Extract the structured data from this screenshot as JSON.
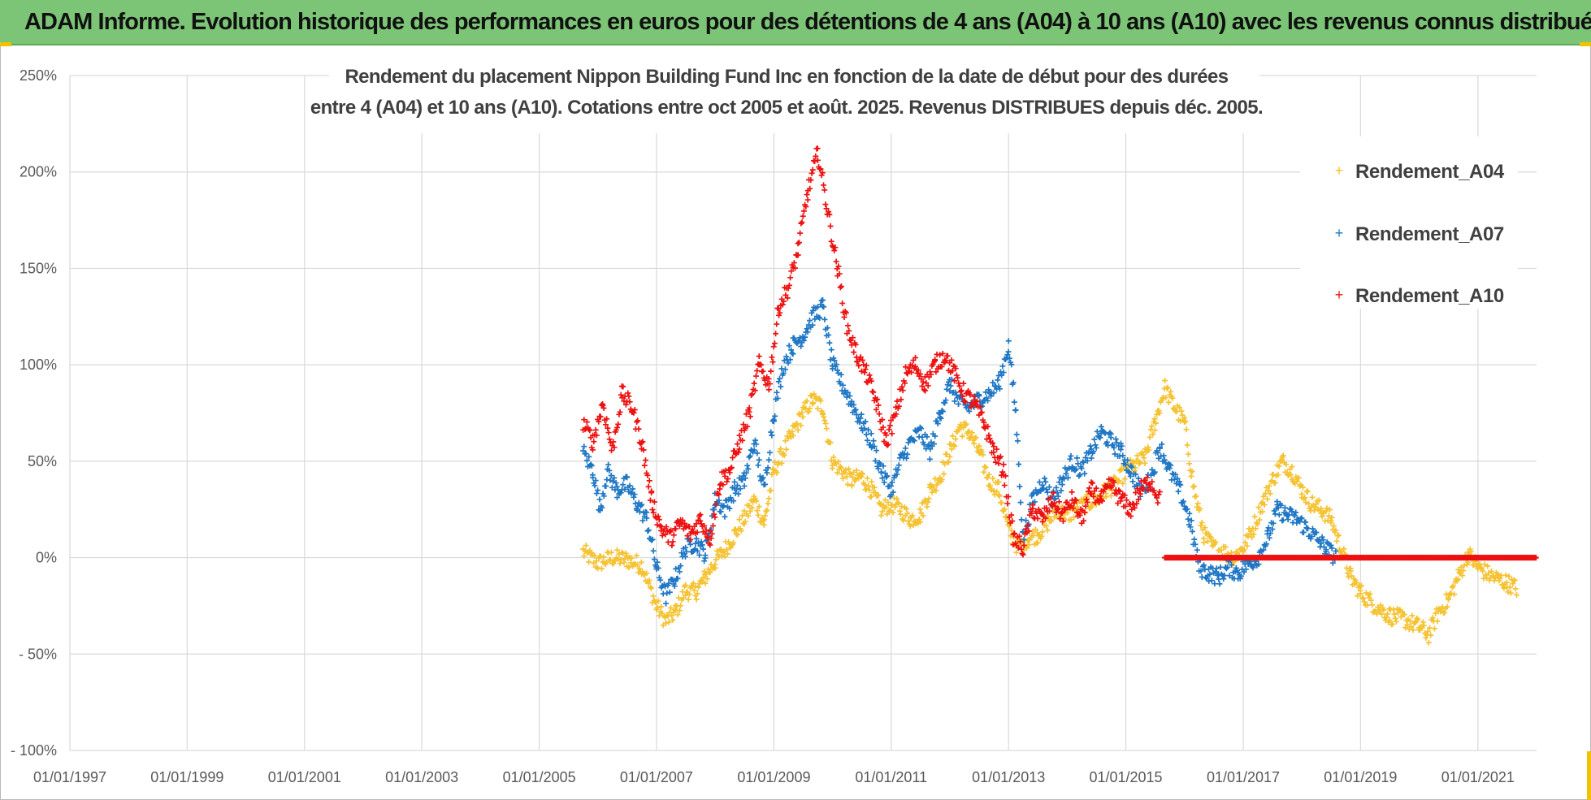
{
  "banner": {
    "title": "ADAM Informe. Evolution historique des performances en euros pour des détentions de 4 ans (A04) à 10 ans (A10) avec les revenus connus distribués"
  },
  "colors": {
    "banner_bg": "#7cc576",
    "A04": "#f5c231",
    "A07": "#1f77c4",
    "A10": "#ee1111",
    "grid": "#d9d9d9"
  },
  "chart_data": {
    "type": "scatter",
    "title_lines": [
      "Rendement du placement Nippon Building Fund Inc en fonction de la date de début pour des durées",
      "entre 4 (A04) et 10 ans (A10). Cotations entre oct 2005 et août. 2025. Revenus DISTRIBUES depuis déc. 2005."
    ],
    "x_axis": {
      "type": "date",
      "min": "1997-01-01",
      "max": "2022-01-01",
      "tick_labels": [
        "01/01/1997",
        "01/01/1999",
        "01/01/2001",
        "01/01/2003",
        "01/01/2005",
        "01/01/2007",
        "01/01/2009",
        "01/01/2011",
        "01/01/2013",
        "01/01/2015",
        "01/01/2017",
        "01/01/2019",
        "01/01/2021"
      ]
    },
    "y_axis": {
      "unit": "%",
      "min": -100,
      "max": 250,
      "tick_values": [
        250,
        200,
        150,
        100,
        50,
        0,
        -50,
        -100
      ],
      "tick_labels": [
        "250%",
        "200%",
        "150%",
        "100%",
        "50%",
        "0%",
        "- 50%",
        "- 100%"
      ]
    },
    "grid": true,
    "legend": {
      "position": "top-right",
      "marker": "+"
    },
    "series": [
      {
        "name": "Rendement_A04",
        "color": "#f5c231",
        "points": [
          [
            "2005-10-01",
            3
          ],
          [
            "2006-01-01",
            -3
          ],
          [
            "2006-04-01",
            0
          ],
          [
            "2006-07-01",
            -1
          ],
          [
            "2006-10-01",
            -4
          ],
          [
            "2007-01-01",
            -25
          ],
          [
            "2007-03-01",
            -33
          ],
          [
            "2007-05-01",
            -28
          ],
          [
            "2007-07-01",
            -17
          ],
          [
            "2007-09-01",
            -18
          ],
          [
            "2007-11-01",
            -10
          ],
          [
            "2008-01-01",
            -2
          ],
          [
            "2008-03-01",
            4
          ],
          [
            "2008-05-01",
            12
          ],
          [
            "2008-07-01",
            20
          ],
          [
            "2008-09-01",
            30
          ],
          [
            "2008-11-01",
            18
          ],
          [
            "2009-01-01",
            45
          ],
          [
            "2009-03-01",
            55
          ],
          [
            "2009-05-01",
            65
          ],
          [
            "2009-07-01",
            75
          ],
          [
            "2009-09-01",
            82
          ],
          [
            "2009-11-01",
            78
          ],
          [
            "2010-01-01",
            50
          ],
          [
            "2010-03-01",
            45
          ],
          [
            "2010-05-01",
            40
          ],
          [
            "2010-07-01",
            42
          ],
          [
            "2010-09-01",
            35
          ],
          [
            "2010-11-01",
            25
          ],
          [
            "2011-01-01",
            28
          ],
          [
            "2011-03-01",
            25
          ],
          [
            "2011-05-01",
            20
          ],
          [
            "2011-07-01",
            22
          ],
          [
            "2011-09-01",
            35
          ],
          [
            "2011-11-01",
            42
          ],
          [
            "2012-01-01",
            55
          ],
          [
            "2012-03-01",
            68
          ],
          [
            "2012-05-01",
            65
          ],
          [
            "2012-07-01",
            55
          ],
          [
            "2012-09-01",
            40
          ],
          [
            "2012-11-01",
            35
          ],
          [
            "2013-01-01",
            15
          ],
          [
            "2013-03-01",
            5
          ],
          [
            "2013-05-01",
            10
          ],
          [
            "2013-07-01",
            12
          ],
          [
            "2013-09-01",
            18
          ],
          [
            "2013-11-01",
            25
          ],
          [
            "2014-01-01",
            22
          ],
          [
            "2014-03-01",
            25
          ],
          [
            "2014-05-01",
            28
          ],
          [
            "2014-07-01",
            30
          ],
          [
            "2014-09-01",
            35
          ],
          [
            "2014-11-01",
            38
          ],
          [
            "2015-01-01",
            45
          ],
          [
            "2015-03-01",
            48
          ],
          [
            "2015-05-01",
            52
          ],
          [
            "2015-07-01",
            70
          ],
          [
            "2015-09-01",
            88
          ],
          [
            "2015-11-01",
            78
          ],
          [
            "2016-01-01",
            70
          ],
          [
            "2016-03-01",
            35
          ],
          [
            "2016-05-01",
            12
          ],
          [
            "2016-07-01",
            5
          ],
          [
            "2016-09-01",
            3
          ],
          [
            "2016-11-01",
            0
          ],
          [
            "2017-01-01",
            5
          ],
          [
            "2017-03-01",
            15
          ],
          [
            "2017-05-01",
            28
          ],
          [
            "2017-07-01",
            40
          ],
          [
            "2017-09-01",
            50
          ],
          [
            "2017-11-01",
            45
          ],
          [
            "2018-01-01",
            35
          ],
          [
            "2018-03-01",
            28
          ],
          [
            "2018-05-01",
            25
          ],
          [
            "2018-07-01",
            20
          ],
          [
            "2018-09-01",
            5
          ],
          [
            "2018-11-01",
            -10
          ],
          [
            "2019-01-01",
            -18
          ],
          [
            "2019-04-01",
            -25
          ],
          [
            "2019-07-01",
            -30
          ],
          [
            "2019-10-01",
            -32
          ],
          [
            "2020-01-01",
            -36
          ],
          [
            "2020-03-01",
            -40
          ],
          [
            "2020-05-01",
            -28
          ],
          [
            "2020-07-01",
            -22
          ],
          [
            "2020-09-01",
            -10
          ],
          [
            "2020-11-01",
            2
          ],
          [
            "2021-01-01",
            -5
          ],
          [
            "2021-04-01",
            -10
          ],
          [
            "2021-07-01",
            -13
          ],
          [
            "2021-09-01",
            -16
          ]
        ]
      },
      {
        "name": "Rendement_A07",
        "color": "#1f77c4",
        "points": [
          [
            "2005-10-01",
            55
          ],
          [
            "2005-12-01",
            45
          ],
          [
            "2006-01-15",
            25
          ],
          [
            "2006-03-01",
            45
          ],
          [
            "2006-05-01",
            35
          ],
          [
            "2006-07-01",
            38
          ],
          [
            "2006-09-01",
            28
          ],
          [
            "2006-11-01",
            20
          ],
          [
            "2007-01-01",
            -5
          ],
          [
            "2007-03-01",
            -20
          ],
          [
            "2007-05-01",
            -10
          ],
          [
            "2007-07-01",
            5
          ],
          [
            "2007-09-01",
            8
          ],
          [
            "2007-11-01",
            2
          ],
          [
            "2008-01-01",
            30
          ],
          [
            "2008-03-01",
            25
          ],
          [
            "2008-05-01",
            35
          ],
          [
            "2008-07-01",
            40
          ],
          [
            "2008-09-01",
            60
          ],
          [
            "2008-11-01",
            35
          ],
          [
            "2009-01-01",
            75
          ],
          [
            "2009-03-01",
            100
          ],
          [
            "2009-05-01",
            110
          ],
          [
            "2009-07-01",
            115
          ],
          [
            "2009-09-01",
            125
          ],
          [
            "2009-11-01",
            130
          ],
          [
            "2010-01-01",
            100
          ],
          [
            "2010-03-01",
            90
          ],
          [
            "2010-05-01",
            80
          ],
          [
            "2010-07-01",
            70
          ],
          [
            "2010-09-01",
            60
          ],
          [
            "2010-11-01",
            45
          ],
          [
            "2011-01-01",
            35
          ],
          [
            "2011-03-01",
            50
          ],
          [
            "2011-05-01",
            60
          ],
          [
            "2011-07-01",
            65
          ],
          [
            "2011-09-01",
            55
          ],
          [
            "2011-11-01",
            75
          ],
          [
            "2012-01-01",
            90
          ],
          [
            "2012-03-01",
            80
          ],
          [
            "2012-05-01",
            78
          ],
          [
            "2012-07-01",
            82
          ],
          [
            "2012-09-01",
            85
          ],
          [
            "2012-11-01",
            90
          ],
          [
            "2013-01-01",
            110
          ],
          [
            "2013-02-15",
            75
          ],
          [
            "2013-04-01",
            10
          ],
          [
            "2013-06-01",
            30
          ],
          [
            "2013-08-01",
            40
          ],
          [
            "2013-10-01",
            30
          ],
          [
            "2013-12-01",
            40
          ],
          [
            "2014-02-01",
            50
          ],
          [
            "2014-04-01",
            45
          ],
          [
            "2014-06-01",
            55
          ],
          [
            "2014-08-01",
            65
          ],
          [
            "2014-10-01",
            60
          ],
          [
            "2014-12-01",
            55
          ],
          [
            "2015-02-01",
            45
          ],
          [
            "2015-04-01",
            35
          ],
          [
            "2015-06-01",
            40
          ],
          [
            "2015-08-01",
            58
          ],
          [
            "2015-10-01",
            45
          ],
          [
            "2015-12-01",
            35
          ],
          [
            "2016-02-01",
            20
          ],
          [
            "2016-04-01",
            -5
          ],
          [
            "2016-06-01",
            -8
          ],
          [
            "2016-08-01",
            -10
          ],
          [
            "2016-10-01",
            -5
          ],
          [
            "2016-12-01",
            -8
          ],
          [
            "2017-02-01",
            -3
          ],
          [
            "2017-04-01",
            0
          ],
          [
            "2017-06-01",
            10
          ],
          [
            "2017-08-01",
            25
          ],
          [
            "2017-10-01",
            22
          ],
          [
            "2017-12-01",
            20
          ],
          [
            "2018-02-01",
            15
          ],
          [
            "2018-04-01",
            10
          ],
          [
            "2018-06-01",
            5
          ],
          [
            "2018-08-01",
            0
          ]
        ]
      },
      {
        "name": "Rendement_A10",
        "color": "#ee1111",
        "points": [
          [
            "2005-10-01",
            70
          ],
          [
            "2005-12-01",
            60
          ],
          [
            "2006-02-01",
            80
          ],
          [
            "2006-04-01",
            55
          ],
          [
            "2006-06-01",
            85
          ],
          [
            "2006-08-01",
            78
          ],
          [
            "2006-10-01",
            60
          ],
          [
            "2006-12-01",
            30
          ],
          [
            "2007-02-01",
            15
          ],
          [
            "2007-04-01",
            10
          ],
          [
            "2007-06-01",
            18
          ],
          [
            "2007-08-01",
            12
          ],
          [
            "2007-10-01",
            20
          ],
          [
            "2007-12-01",
            10
          ],
          [
            "2008-02-01",
            40
          ],
          [
            "2008-04-01",
            45
          ],
          [
            "2008-06-01",
            60
          ],
          [
            "2008-08-01",
            75
          ],
          [
            "2008-10-01",
            100
          ],
          [
            "2008-12-01",
            90
          ],
          [
            "2009-02-01",
            130
          ],
          [
            "2009-04-01",
            140
          ],
          [
            "2009-06-01",
            160
          ],
          [
            "2009-08-01",
            190
          ],
          [
            "2009-10-01",
            210
          ],
          [
            "2009-12-01",
            180
          ],
          [
            "2010-02-01",
            150
          ],
          [
            "2010-04-01",
            120
          ],
          [
            "2010-06-01",
            105
          ],
          [
            "2010-08-01",
            95
          ],
          [
            "2010-10-01",
            80
          ],
          [
            "2010-12-01",
            60
          ],
          [
            "2011-02-01",
            75
          ],
          [
            "2011-04-01",
            95
          ],
          [
            "2011-06-01",
            100
          ],
          [
            "2011-08-01",
            90
          ],
          [
            "2011-10-01",
            100
          ],
          [
            "2011-12-01",
            105
          ],
          [
            "2012-02-01",
            95
          ],
          [
            "2012-04-01",
            85
          ],
          [
            "2012-06-01",
            80
          ],
          [
            "2012-08-01",
            70
          ],
          [
            "2012-10-01",
            55
          ],
          [
            "2012-12-01",
            45
          ],
          [
            "2013-02-01",
            10
          ],
          [
            "2013-04-01",
            5
          ],
          [
            "2013-06-01",
            25
          ],
          [
            "2013-08-01",
            20
          ],
          [
            "2013-10-01",
            30
          ],
          [
            "2013-12-01",
            22
          ],
          [
            "2014-02-01",
            30
          ],
          [
            "2014-04-01",
            20
          ],
          [
            "2014-06-01",
            35
          ],
          [
            "2014-08-01",
            30
          ],
          [
            "2014-10-01",
            38
          ],
          [
            "2014-12-01",
            30
          ],
          [
            "2015-02-01",
            25
          ],
          [
            "2015-04-01",
            35
          ],
          [
            "2015-06-01",
            40
          ],
          [
            "2015-08-01",
            30
          ]
        ],
        "zero_band": {
          "from": "2015-09-01",
          "to": "2022-01-01",
          "value": 0
        }
      }
    ]
  }
}
